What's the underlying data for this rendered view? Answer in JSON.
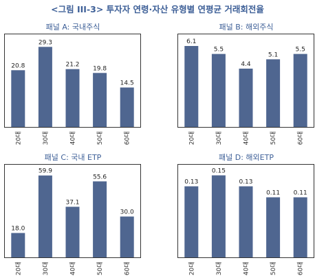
{
  "figure_title": "<그림 III-3> 투자자 연령·자산 유형별 연평균 거래회전율",
  "chart_data": [
    {
      "type": "bar",
      "title": "패널 A: 국내주식",
      "categories": [
        "20대",
        "30대",
        "40대",
        "50대",
        "60대"
      ],
      "values": [
        20.8,
        29.3,
        21.2,
        19.8,
        14.5
      ],
      "value_labels": [
        "20.8",
        "29.3",
        "21.2",
        "19.8",
        "14.5"
      ],
      "ylim": [
        0,
        34
      ],
      "bar_color": "#4f6690"
    },
    {
      "type": "bar",
      "title": "패널 B: 해외주식",
      "categories": [
        "20대",
        "30대",
        "40대",
        "50대",
        "60대"
      ],
      "values": [
        6.1,
        5.5,
        4.4,
        5.1,
        5.5
      ],
      "value_labels": [
        "6.1",
        "5.5",
        "4.4",
        "5.1",
        "5.5"
      ],
      "ylim": [
        0,
        7
      ],
      "bar_color": "#4f6690"
    },
    {
      "type": "bar",
      "title": "패널 C: 국내 ETP",
      "categories": [
        "20대",
        "30대",
        "40대",
        "50대",
        "60대"
      ],
      "values": [
        18.0,
        59.9,
        37.1,
        55.6,
        30.0
      ],
      "value_labels": [
        "18.0",
        "59.9",
        "37.1",
        "55.6",
        "30.0"
      ],
      "ylim": [
        0,
        68
      ],
      "bar_color": "#4f6690"
    },
    {
      "type": "bar",
      "title": "패널 D: 해외ETP",
      "categories": [
        "20대",
        "30대",
        "40대",
        "50대",
        "60대"
      ],
      "values": [
        0.13,
        0.15,
        0.13,
        0.11,
        0.11
      ],
      "value_labels": [
        "0.13",
        "0.15",
        "0.13",
        "0.11",
        "0.11"
      ],
      "ylim": [
        0,
        0.17
      ],
      "bar_color": "#4f6690"
    }
  ]
}
